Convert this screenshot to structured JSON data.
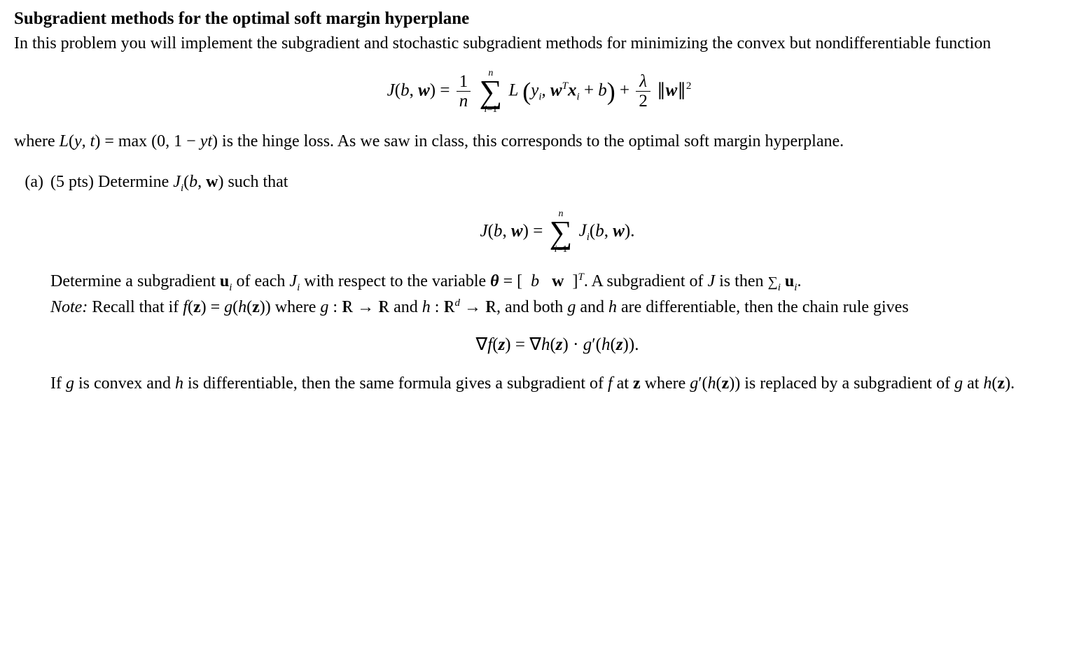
{
  "title": "Subgradient methods for the optimal soft margin hyperplane",
  "intro": "In this problem you will implement the subgradient and stochastic subgradient methods for minimizing the convex but nondifferentiable function",
  "formula1": {
    "lhs": "J(b, w) =",
    "frac1_num": "1",
    "frac1_den": "n",
    "sum_top": "n",
    "sum_bot": "i=1",
    "L_part": "L",
    "inside": "y_i, w^T x_i + b",
    "plus": "+",
    "frac2_num": "λ",
    "frac2_den": "2",
    "norm": "||w||",
    "exp": "2"
  },
  "para2_a": "where ",
  "para2_eq": "L(y, t) = max (0, 1 − yt)",
  "para2_b": " is the hinge loss. As we saw in class, this corresponds to the optimal soft margin hyperplane.",
  "item_a": {
    "label": "(a)",
    "points": "(5 pts) Determine ",
    "ji": "J_i(b, w)",
    "such": " such that",
    "formula_lhs": "J(b, w) =",
    "sum_top": "n",
    "sum_bot": "i=1",
    "ji2": "J_i(b, w).",
    "p2a": "Determine a subgradient ",
    "ui": "u_i",
    "p2b": " of each ",
    "jivar": "J_i",
    "p2c": " with respect to the variable ",
    "theta": "θ",
    "p2d": " = [ ",
    "bw": "b   w",
    "p2e": " ]",
    "Texp": "T",
    "p2f": ". A subgradient of ",
    "Jvar": "J",
    "p2g": " is then ",
    "sumui": "Σ_i u_i",
    "period": ".",
    "note_label": "Note:",
    "note_a": " Recall that if ",
    "fz": "f(z) = g(h(z))",
    "note_b": " where ",
    "gmap": "g : ℝ → ℝ",
    "note_c": " and ",
    "hmap": "h : ℝ^d → ℝ",
    "note_d": ", and both ",
    "gvar": "g",
    "note_e": " and ",
    "hvar": "h",
    "note_f": " are differentiable, then the chain rule gives",
    "formula3": "∇f(z) = ∇h(z) · g′(h(z)).",
    "p3a": "If ",
    "p3b": " is convex and ",
    "p3c": " is differentiable, then the same formula gives a subgradient of ",
    "fvar": "f",
    "p3d": " at ",
    "zvar": "z",
    "p3e": " where ",
    "gphz": "g′(h(z))",
    "p3f": " is replaced by a subgradient of ",
    "p3g": " at ",
    "hz": "h(z)",
    "p3h": "."
  }
}
